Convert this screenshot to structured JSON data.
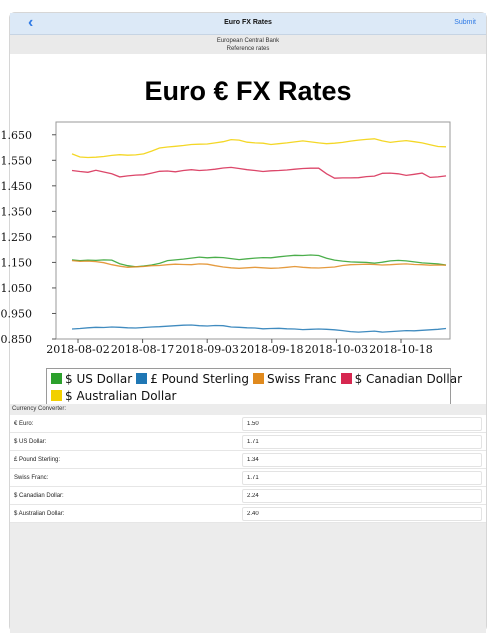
{
  "navbar": {
    "title": "Euro FX Rates",
    "back_icon": "chevron-left-icon",
    "submit_label": "Submit"
  },
  "subheader": {
    "line1": "European Central Bank",
    "line2": "Reference rates"
  },
  "page_title": "Euro € FX Rates",
  "legend": {
    "items": [
      {
        "label": "$ US Dollar",
        "color": "#2ca02c"
      },
      {
        "label": "£ Pound Sterling",
        "color": "#1f77b4"
      },
      {
        "label": "Swiss Franc",
        "color": "#e08a1e"
      },
      {
        "label": "$ Canadian Dollar",
        "color": "#d62750"
      },
      {
        "label": "$ Australian Dollar",
        "color": "#f2d000"
      }
    ]
  },
  "chart_data": {
    "type": "line",
    "title": "Euro € FX Rates",
    "xlabel": "",
    "ylabel": "",
    "x_ticks": [
      "2018-08-02",
      "2018-08-17",
      "2018-09-03",
      "2018-09-18",
      "2018-10-03",
      "2018-10-18"
    ],
    "y_ticks": [
      "0.850",
      "0.950",
      "1.050",
      "1.150",
      "1.250",
      "1.350",
      "1.450",
      "1.550",
      "1.650"
    ],
    "ylim": [
      0.85,
      1.7
    ],
    "grid": false,
    "legend_position": "bottom",
    "series": [
      {
        "name": "$ US Dollar",
        "color": "#2ca02c",
        "values": [
          1.16,
          1.157,
          1.159,
          1.158,
          1.16,
          1.159,
          1.145,
          1.137,
          1.133,
          1.136,
          1.14,
          1.146,
          1.157,
          1.16,
          1.163,
          1.167,
          1.171,
          1.168,
          1.17,
          1.169,
          1.165,
          1.161,
          1.164,
          1.167,
          1.169,
          1.168,
          1.172,
          1.175,
          1.178,
          1.177,
          1.179,
          1.177,
          1.166,
          1.159,
          1.155,
          1.152,
          1.151,
          1.15,
          1.147,
          1.151,
          1.156,
          1.158,
          1.156,
          1.152,
          1.148,
          1.146,
          1.144,
          1.14
        ]
      },
      {
        "name": "£ Pound Sterling",
        "color": "#1f77b4",
        "values": [
          0.889,
          0.891,
          0.894,
          0.896,
          0.895,
          0.897,
          0.896,
          0.894,
          0.893,
          0.895,
          0.897,
          0.898,
          0.9,
          0.902,
          0.904,
          0.905,
          0.902,
          0.901,
          0.903,
          0.902,
          0.897,
          0.896,
          0.894,
          0.893,
          0.89,
          0.891,
          0.892,
          0.89,
          0.889,
          0.887,
          0.888,
          0.889,
          0.888,
          0.886,
          0.883,
          0.879,
          0.877,
          0.879,
          0.881,
          0.877,
          0.879,
          0.881,
          0.883,
          0.882,
          0.884,
          0.886,
          0.888,
          0.891
        ]
      },
      {
        "name": "Swiss Franc",
        "color": "#e08a1e",
        "values": [
          1.157,
          1.154,
          1.155,
          1.153,
          1.149,
          1.141,
          1.135,
          1.131,
          1.133,
          1.134,
          1.137,
          1.138,
          1.141,
          1.143,
          1.142,
          1.141,
          1.144,
          1.143,
          1.137,
          1.132,
          1.129,
          1.127,
          1.129,
          1.131,
          1.129,
          1.127,
          1.128,
          1.131,
          1.134,
          1.131,
          1.129,
          1.128,
          1.13,
          1.132,
          1.138,
          1.141,
          1.142,
          1.143,
          1.142,
          1.14,
          1.141,
          1.143,
          1.144,
          1.142,
          1.141,
          1.139,
          1.14,
          1.139
        ]
      },
      {
        "name": "$ Canadian Dollar",
        "color": "#d62750",
        "values": [
          1.51,
          1.506,
          1.503,
          1.511,
          1.504,
          1.497,
          1.485,
          1.489,
          1.492,
          1.493,
          1.5,
          1.507,
          1.508,
          1.505,
          1.51,
          1.513,
          1.51,
          1.512,
          1.515,
          1.52,
          1.522,
          1.518,
          1.513,
          1.51,
          1.506,
          1.509,
          1.51,
          1.512,
          1.515,
          1.518,
          1.519,
          1.519,
          1.497,
          1.48,
          1.481,
          1.481,
          1.482,
          1.486,
          1.488,
          1.499,
          1.5,
          1.497,
          1.491,
          1.495,
          1.5,
          1.483,
          1.485,
          1.489
        ]
      },
      {
        "name": "$ Australian Dollar",
        "color": "#f2d000",
        "values": [
          1.575,
          1.563,
          1.561,
          1.562,
          1.565,
          1.569,
          1.572,
          1.57,
          1.571,
          1.575,
          1.586,
          1.598,
          1.602,
          1.605,
          1.608,
          1.612,
          1.613,
          1.614,
          1.618,
          1.623,
          1.631,
          1.629,
          1.621,
          1.618,
          1.617,
          1.612,
          1.615,
          1.618,
          1.622,
          1.626,
          1.622,
          1.618,
          1.615,
          1.617,
          1.62,
          1.625,
          1.629,
          1.632,
          1.634,
          1.626,
          1.62,
          1.624,
          1.627,
          1.623,
          1.618,
          1.611,
          1.604,
          1.603
        ]
      }
    ]
  },
  "converter": {
    "header": "Currency Converter:",
    "rows": [
      {
        "label": "€ Euro:",
        "value": "1.50"
      },
      {
        "label": "$ US Dollar:",
        "value": "1.71"
      },
      {
        "label": "£ Pound Sterling:",
        "value": "1.34"
      },
      {
        "label": "Swiss Franc:",
        "value": "1.71"
      },
      {
        "label": "$ Canadian Dollar:",
        "value": "2.24"
      },
      {
        "label": "$ Australian Dollar:",
        "value": "2.40"
      }
    ]
  }
}
